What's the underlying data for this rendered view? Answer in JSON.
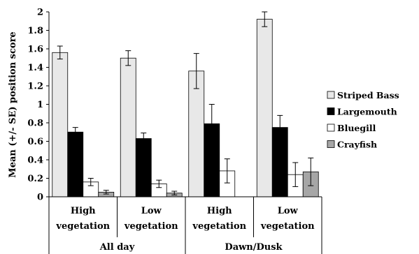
{
  "chart_data": {
    "type": "bar",
    "ylabel": "Mean (+/- SE) position score",
    "ylim": [
      0,
      2
    ],
    "yticks": [
      "0",
      "0.2",
      "0.4",
      "0.6",
      "0.8",
      "1",
      "1.2",
      "1.4",
      "1.6",
      "1.8",
      "2"
    ],
    "grid": false,
    "legend_position": "right",
    "categories": [
      {
        "line1": "High",
        "line2": "vegetation",
        "group": "All day"
      },
      {
        "line1": "Low",
        "line2": "vegetation",
        "group": "All day"
      },
      {
        "line1": "High",
        "line2": "vegetation",
        "group": "Dawn/Dusk"
      },
      {
        "line1": "Low",
        "line2": "vegetation",
        "group": "Dawn/Dusk"
      }
    ],
    "groups": [
      "All day",
      "Dawn/Dusk"
    ],
    "series": [
      {
        "name": "Striped Bass",
        "color": "#e8e8e8",
        "values": [
          1.56,
          1.5,
          1.36,
          1.92
        ],
        "errors": [
          0.07,
          0.08,
          0.19,
          0.08
        ]
      },
      {
        "name": "Largemouth",
        "color": "#000000",
        "values": [
          0.7,
          0.63,
          0.79,
          0.75
        ],
        "errors": [
          0.05,
          0.06,
          0.21,
          0.13
        ]
      },
      {
        "name": "Bluegill",
        "color": "#ffffff",
        "values": [
          0.16,
          0.14,
          0.28,
          0.24
        ],
        "errors": [
          0.04,
          0.04,
          0.13,
          0.13
        ]
      },
      {
        "name": "Crayfish",
        "color": "#a6a6a6",
        "values": [
          0.05,
          0.04,
          null,
          0.27
        ],
        "errors": [
          0.02,
          0.02,
          null,
          0.15
        ]
      }
    ]
  }
}
